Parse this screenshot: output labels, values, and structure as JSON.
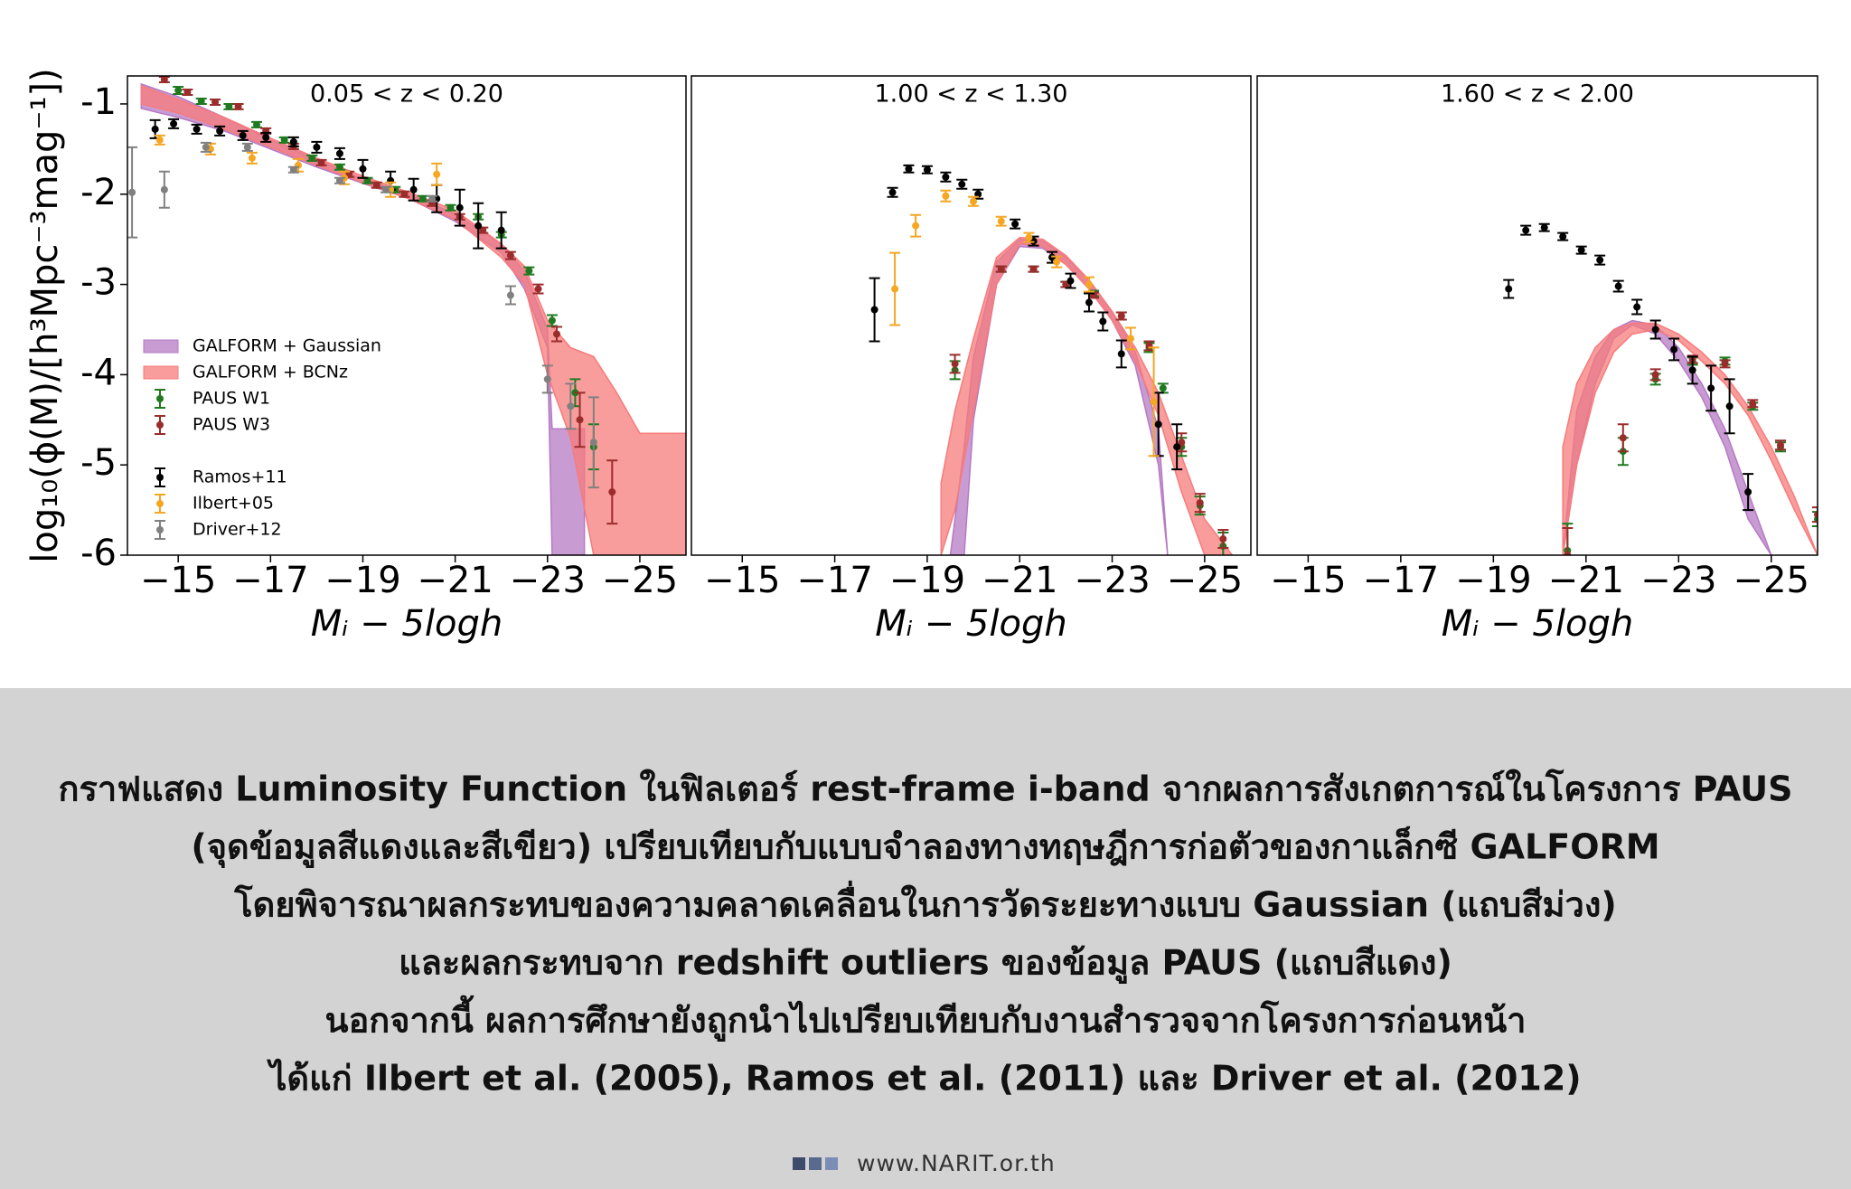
{
  "chart_data": [
    {
      "type": "scatter",
      "title": "0.05 < z < 0.20",
      "xlabel": "Mᵢ − 5logh",
      "ylabel": "log₁₀(ϕ(M)/[h³Mpc⁻³mag⁻¹])",
      "xlim": [
        -13.9,
        -26.0
      ],
      "ylim": [
        -6,
        -0.69
      ],
      "xticks": [
        {
          "value": -15,
          "label": "−15"
        },
        {
          "value": -17,
          "label": "−17"
        },
        {
          "value": -19,
          "label": "−19"
        },
        {
          "value": -21,
          "label": "−21"
        },
        {
          "value": -23,
          "label": "−23"
        },
        {
          "value": -25,
          "label": "−25"
        }
      ],
      "yticks": [
        {
          "value": -1,
          "label": "-1"
        },
        {
          "value": -2,
          "label": "-2"
        },
        {
          "value": -3,
          "label": "-3"
        },
        {
          "value": -4,
          "label": "-4"
        },
        {
          "value": -5,
          "label": "-5"
        },
        {
          "value": -6,
          "label": "-6"
        }
      ],
      "series": [
        {
          "name": "GALFORM + Gaussian",
          "kind": "band",
          "color": "#b57ac4",
          "x": [
            -14.2,
            -15,
            -16,
            -17,
            -18,
            -19,
            -20,
            -21,
            -22,
            -22.5,
            -23,
            -23.1,
            -23.8
          ],
          "upper": [
            -0.78,
            -0.92,
            -1.15,
            -1.4,
            -1.62,
            -1.83,
            -2.0,
            -2.22,
            -2.55,
            -2.85,
            -3.5,
            -4.6,
            -4.6
          ],
          "lower": [
            -1.05,
            -1.15,
            -1.3,
            -1.5,
            -1.7,
            -1.88,
            -2.05,
            -2.3,
            -2.65,
            -3.05,
            -3.7,
            -6,
            -6
          ]
        },
        {
          "name": "GALFORM + BCNz",
          "kind": "band",
          "color": "#f77b7b",
          "x": [
            -14.2,
            -15,
            -16,
            -17,
            -18,
            -19,
            -20,
            -21,
            -22,
            -22.5,
            -23,
            -23.5,
            -24,
            -24.5,
            -25,
            -26
          ],
          "upper": [
            -0.8,
            -0.95,
            -1.15,
            -1.38,
            -1.6,
            -1.8,
            -1.98,
            -2.18,
            -2.55,
            -2.8,
            -3.4,
            -3.7,
            -3.8,
            -4.2,
            -4.65,
            -4.65
          ],
          "lower": [
            -1.0,
            -1.1,
            -1.28,
            -1.48,
            -1.68,
            -1.87,
            -2.05,
            -2.28,
            -2.7,
            -3.0,
            -4.0,
            -4.7,
            -6,
            -6,
            -6,
            -6
          ]
        },
        {
          "name": "PAUS W1",
          "kind": "errorbar",
          "color": "#1f7a1f",
          "x": [
            -15.0,
            -15.5,
            -16.1,
            -16.7,
            -17.3,
            -17.9,
            -18.5,
            -19.1,
            -19.7,
            -20.3,
            -20.9,
            -21.5,
            -22.0,
            -22.6,
            -23.1,
            -23.6,
            -24.0
          ],
          "values": [
            -0.85,
            -0.97,
            -1.03,
            -1.23,
            -1.4,
            -1.6,
            -1.7,
            -1.85,
            -1.95,
            -2.05,
            -2.15,
            -2.25,
            -2.45,
            -2.85,
            -3.4,
            -4.2,
            -4.8
          ],
          "errors": [
            0.04,
            0.03,
            0.03,
            0.03,
            0.03,
            0.03,
            0.03,
            0.03,
            0.03,
            0.03,
            0.03,
            0.03,
            0.03,
            0.04,
            0.06,
            0.15,
            0.25
          ]
        },
        {
          "name": "PAUS W3",
          "kind": "errorbar",
          "color": "#9b2c2c",
          "x": [
            -14.7,
            -15.2,
            -15.8,
            -16.3,
            -16.9,
            -17.5,
            -18.1,
            -18.7,
            -19.3,
            -19.9,
            -20.5,
            -21.1,
            -21.6,
            -22.2,
            -22.8,
            -23.2,
            -23.7,
            -24.4
          ],
          "values": [
            -0.73,
            -0.87,
            -0.98,
            -1.03,
            -1.3,
            -1.47,
            -1.65,
            -1.78,
            -1.9,
            -2.0,
            -2.1,
            -2.25,
            -2.4,
            -2.68,
            -3.05,
            -3.55,
            -4.5,
            -5.3
          ],
          "errors": [
            0.03,
            0.03,
            0.03,
            0.03,
            0.03,
            0.03,
            0.03,
            0.03,
            0.03,
            0.03,
            0.03,
            0.03,
            0.03,
            0.04,
            0.05,
            0.08,
            0.3,
            0.35
          ]
        },
        {
          "name": "Ramos+11",
          "kind": "errorbar",
          "color": "#000000",
          "x": [
            -14.5,
            -14.9,
            -15.4,
            -15.9,
            -16.4,
            -16.9,
            -17.5,
            -18.0,
            -18.5,
            -19.0,
            -19.6,
            -20.1,
            -20.6,
            -21.1,
            -21.5,
            -22.0
          ],
          "values": [
            -1.28,
            -1.22,
            -1.28,
            -1.3,
            -1.35,
            -1.37,
            -1.42,
            -1.48,
            -1.55,
            -1.72,
            -1.85,
            -1.95,
            -2.05,
            -2.15,
            -2.35,
            -2.4
          ],
          "errors": [
            0.1,
            0.05,
            0.05,
            0.05,
            0.05,
            0.05,
            0.05,
            0.06,
            0.06,
            0.1,
            0.1,
            0.12,
            0.15,
            0.2,
            0.25,
            0.2
          ]
        },
        {
          "name": "Ilbert+05",
          "kind": "errorbar",
          "color": "#f5a623",
          "x": [
            -14.6,
            -15.7,
            -16.6,
            -17.6,
            -18.6,
            -19.6,
            -20.6
          ],
          "values": [
            -1.4,
            -1.5,
            -1.6,
            -1.68,
            -1.82,
            -1.95,
            -1.78
          ],
          "errors": [
            0.05,
            0.06,
            0.06,
            0.07,
            0.07,
            0.08,
            0.12
          ]
        },
        {
          "name": "Driver+12",
          "kind": "errorbar",
          "color": "#808080",
          "x": [
            -14.0,
            -14.7,
            -15.6,
            -16.5,
            -17.5,
            -18.5,
            -19.5,
            -20.5,
            -22.2,
            -23.0,
            -23.5,
            -24.0
          ],
          "values": [
            -1.98,
            -1.95,
            -1.48,
            -1.48,
            -1.73,
            -1.85,
            -1.95,
            -2.05,
            -3.12,
            -4.05,
            -4.35,
            -4.75
          ],
          "errors": [
            0.5,
            0.2,
            0.05,
            0.04,
            0.03,
            0.03,
            0.03,
            0.03,
            0.1,
            0.15,
            0.25,
            0.5
          ]
        }
      ]
    },
    {
      "type": "scatter",
      "title": "1.00 < z < 1.30",
      "xlabel": "Mᵢ − 5logh",
      "xlim": [
        -13.9,
        -26.0
      ],
      "ylim": [
        -6,
        -0.69
      ],
      "xticks": [
        {
          "value": -15,
          "label": "−15"
        },
        {
          "value": -17,
          "label": "−17"
        },
        {
          "value": -19,
          "label": "−19"
        },
        {
          "value": -21,
          "label": "−21"
        },
        {
          "value": -23,
          "label": "−23"
        },
        {
          "value": -25,
          "label": "−25"
        }
      ],
      "series": [
        {
          "kind": "band",
          "color": "#b57ac4",
          "x": [
            -19.5,
            -19.8,
            -20,
            -20.5,
            -21,
            -21.5,
            -22,
            -22.5,
            -23,
            -23.5,
            -24,
            -24.2
          ],
          "upper": [
            -6,
            -4.8,
            -3.8,
            -2.75,
            -2.5,
            -2.52,
            -2.7,
            -2.95,
            -3.3,
            -3.75,
            -4.6,
            -6
          ],
          "lower": [
            -6,
            -6,
            -4.5,
            -3.0,
            -2.58,
            -2.6,
            -2.78,
            -3.05,
            -3.4,
            -3.9,
            -5.0,
            -6
          ]
        },
        {
          "kind": "band",
          "color": "#f77b7b",
          "x": [
            -19.3,
            -19.6,
            -20,
            -20.5,
            -21,
            -21.5,
            -22,
            -22.5,
            -23,
            -23.5,
            -24,
            -24.5,
            -25,
            -25.6
          ],
          "upper": [
            -5.2,
            -4.4,
            -3.6,
            -2.7,
            -2.48,
            -2.5,
            -2.68,
            -2.95,
            -3.3,
            -3.7,
            -4.2,
            -4.9,
            -5.6,
            -6
          ],
          "lower": [
            -6,
            -5.5,
            -4.4,
            -3.0,
            -2.55,
            -2.58,
            -2.78,
            -3.05,
            -3.4,
            -3.85,
            -4.45,
            -5.3,
            -6,
            -6
          ]
        },
        {
          "kind": "errorbar",
          "color": "#1f7a1f",
          "x": [
            -19.6,
            -20.6,
            -21.3,
            -22.0,
            -22.6,
            -23.2,
            -23.8,
            -24.1,
            -24.5,
            -24.9,
            -25.4
          ],
          "values": [
            -3.95,
            -2.83,
            -2.83,
            -3.0,
            -3.1,
            -3.35,
            -3.7,
            -4.15,
            -4.8,
            -5.45,
            -5.9
          ],
          "errors": [
            0.1,
            0.03,
            0.03,
            0.03,
            0.03,
            0.04,
            0.05,
            0.05,
            0.1,
            0.1,
            0.15
          ]
        },
        {
          "kind": "errorbar",
          "color": "#9b2c2c",
          "x": [
            -19.6,
            -20.6,
            -21.3,
            -22.0,
            -22.6,
            -23.2,
            -23.8,
            -24.5,
            -24.9,
            -25.4
          ],
          "values": [
            -3.88,
            -2.83,
            -2.83,
            -3.0,
            -3.12,
            -3.35,
            -3.68,
            -4.75,
            -5.42,
            -5.82
          ],
          "errors": [
            0.1,
            0.03,
            0.03,
            0.03,
            0.03,
            0.04,
            0.05,
            0.1,
            0.1,
            0.1
          ]
        },
        {
          "kind": "errorbar",
          "color": "#000000",
          "x": [
            -17.86,
            -18.25,
            -18.6,
            -19.0,
            -19.4,
            -19.75,
            -20.1,
            -20.9,
            -21.3,
            -21.7,
            -22.1,
            -22.5,
            -22.8,
            -23.2,
            -24.0,
            -24.4
          ],
          "values": [
            -3.28,
            -1.98,
            -1.72,
            -1.73,
            -1.81,
            -1.89,
            -2.0,
            -2.33,
            -2.52,
            -2.7,
            -2.96,
            -3.2,
            -3.41,
            -3.77,
            -4.55,
            -4.8
          ],
          "errors": [
            0.35,
            0.05,
            0.04,
            0.04,
            0.05,
            0.05,
            0.05,
            0.05,
            0.05,
            0.06,
            0.08,
            0.1,
            0.1,
            0.15,
            0.35,
            0.25
          ]
        },
        {
          "kind": "errorbar",
          "color": "#f5a623",
          "x": [
            -18.3,
            -18.75,
            -19.4,
            -20.0,
            -20.6,
            -21.2,
            -21.8,
            -22.5,
            -23.4,
            -23.9
          ],
          "values": [
            -3.05,
            -2.35,
            -2.02,
            -2.08,
            -2.3,
            -2.48,
            -2.75,
            -3.0,
            -3.6,
            -4.3
          ],
          "errors": [
            0.4,
            0.12,
            0.06,
            0.05,
            0.05,
            0.05,
            0.06,
            0.08,
            0.12,
            0.6
          ]
        }
      ]
    },
    {
      "type": "scatter",
      "title": "1.60 < z < 2.00",
      "xlabel": "Mᵢ − 5logh",
      "xlim": [
        -13.9,
        -26.0
      ],
      "ylim": [
        -6,
        -0.69
      ],
      "xticks": [
        {
          "value": -15,
          "label": "−15"
        },
        {
          "value": -17,
          "label": "−17"
        },
        {
          "value": -19,
          "label": "−19"
        },
        {
          "value": -21,
          "label": "−21"
        },
        {
          "value": -23,
          "label": "−23"
        },
        {
          "value": -25,
          "label": "−25"
        }
      ],
      "series": [
        {
          "kind": "band",
          "color": "#b57ac4",
          "x": [
            -20.5,
            -20.8,
            -21.2,
            -21.6,
            -22,
            -22.5,
            -23,
            -23.5,
            -24,
            -24.5,
            -25
          ],
          "upper": [
            -6,
            -4.4,
            -3.8,
            -3.5,
            -3.4,
            -3.45,
            -3.7,
            -4.1,
            -4.6,
            -5.3,
            -6
          ],
          "lower": [
            -6,
            -5,
            -4.1,
            -3.6,
            -3.45,
            -3.55,
            -3.85,
            -4.25,
            -4.8,
            -5.6,
            -6
          ]
        },
        {
          "kind": "band",
          "color": "#f77b7b",
          "x": [
            -20.5,
            -20.8,
            -21.2,
            -21.6,
            -22,
            -22.5,
            -23,
            -23.5,
            -24,
            -24.5,
            -25,
            -25.5,
            -26
          ],
          "upper": [
            -4.8,
            -4.1,
            -3.7,
            -3.5,
            -3.43,
            -3.43,
            -3.55,
            -3.75,
            -4.0,
            -4.35,
            -4.8,
            -5.35,
            -6
          ],
          "lower": [
            -6,
            -5,
            -4.2,
            -3.75,
            -3.55,
            -3.5,
            -3.62,
            -3.85,
            -4.1,
            -4.45,
            -4.95,
            -5.5,
            -6
          ]
        },
        {
          "kind": "errorbar",
          "color": "#1f7a1f",
          "x": [
            -20.6,
            -21.8,
            -22.5,
            -23.3,
            -24.0,
            -24.6,
            -25.2,
            -26.0
          ],
          "values": [
            -5.95,
            -4.85,
            -4.05,
            -3.85,
            -3.85,
            -4.35,
            -4.8,
            -5.6
          ],
          "errors": [
            0.3,
            0.15,
            0.06,
            0.04,
            0.04,
            0.04,
            0.05,
            0.08
          ]
        },
        {
          "kind": "errorbar",
          "color": "#9b2c2c",
          "x": [
            -20.6,
            -21.8,
            -22.5,
            -23.3,
            -24.0,
            -24.6,
            -25.2,
            -26.0
          ],
          "values": [
            -6.0,
            -4.7,
            -4.0,
            -3.83,
            -3.88,
            -4.32,
            -4.78,
            -5.55
          ],
          "errors": [
            0.3,
            0.15,
            0.06,
            0.04,
            0.04,
            0.04,
            0.05,
            0.08
          ]
        },
        {
          "kind": "errorbar",
          "color": "#000000",
          "x": [
            -19.33,
            -19.7,
            -20.1,
            -20.5,
            -20.9,
            -21.3,
            -21.7,
            -22.1,
            -22.5,
            -22.9,
            -23.3,
            -23.7,
            -24.1,
            -24.5
          ],
          "values": [
            -3.05,
            -2.4,
            -2.37,
            -2.47,
            -2.62,
            -2.73,
            -3.02,
            -3.25,
            -3.5,
            -3.72,
            -3.95,
            -4.15,
            -4.35,
            -5.3
          ],
          "errors": [
            0.1,
            0.05,
            0.04,
            0.04,
            0.04,
            0.05,
            0.06,
            0.08,
            0.1,
            0.12,
            0.15,
            0.25,
            0.3,
            0.2
          ]
        }
      ]
    }
  ],
  "caption": [
    "กราฟแสดง Luminosity Function ในฟิลเตอร์ rest-frame i-band จากผลการสังเกตการณ์ในโครงการ PAUS",
    "(จุดข้อมูลสีแดงและสีเขียว) เปรียบเทียบกับแบบจำลองทางทฤษฎีการก่อตัวของกาแล็กซี GALFORM",
    "โดยพิจารณาผลกระทบของความคลาดเคลื่อนในการวัดระยะทางแบบ Gaussian (แถบสีม่วง)",
    "และผลกระทบจาก redshift outliers ของข้อมูล PAUS (แถบสีแดง)",
    "นอกจากนี้ ผลการศึกษายังถูกนำไปเปรียบเทียบกับงานสำรวจจากโครงการก่อนหน้า",
    "ได้แก่ Ilbert et al. (2005), Ramos et al. (2011) และ Driver et al. (2012)"
  ],
  "footer": "www.NARIT.or.th"
}
